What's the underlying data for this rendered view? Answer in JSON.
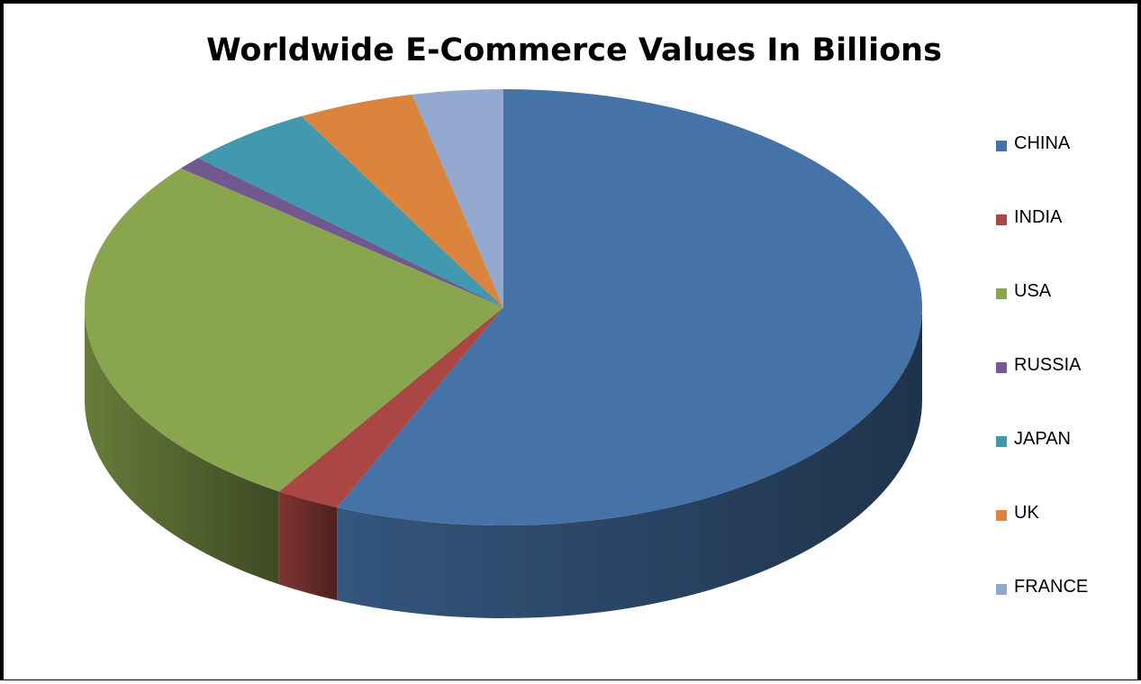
{
  "chart_data": {
    "type": "pie",
    "title": "Worldwide E-Commerce Values In Billions",
    "categories": [
      "CHINA",
      "INDIA",
      "USA",
      "RUSSIA",
      "JAPAN",
      "UK",
      "FRANCE"
    ],
    "values": [
      56.5,
      2.5,
      27.0,
      1.0,
      5.0,
      4.5,
      3.5
    ],
    "colors": [
      "#4572A7",
      "#AA4643",
      "#89A54E",
      "#71588F",
      "#4198AF",
      "#DB843D",
      "#93A9CF"
    ],
    "legend_position": "right",
    "style": "3d"
  }
}
